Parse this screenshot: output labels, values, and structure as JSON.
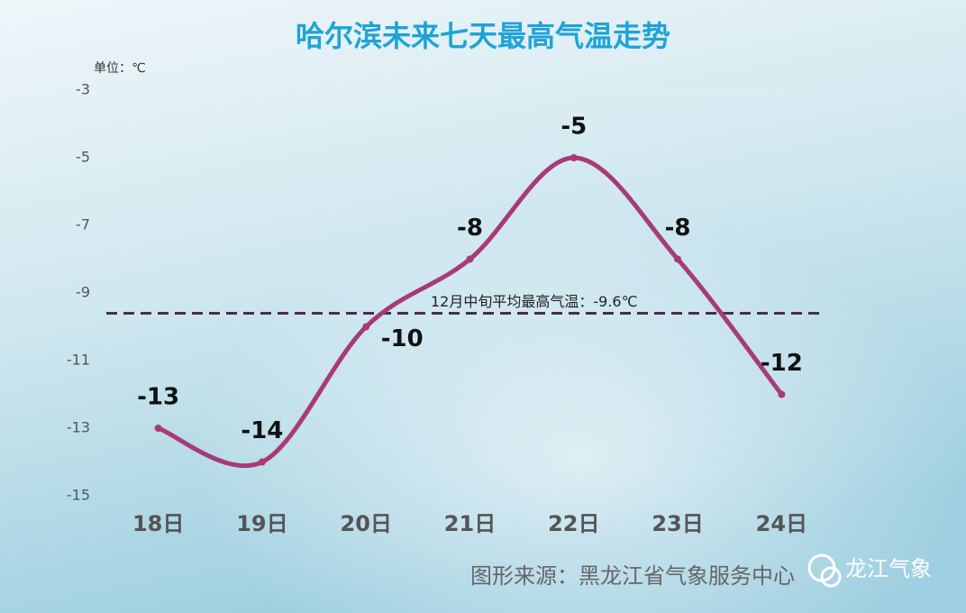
{
  "chart_data": {
    "type": "line",
    "title": "哈尔滨未来七天最高气温走势",
    "y_unit": "单位：℃",
    "categories": [
      "18日",
      "19日",
      "20日",
      "21日",
      "22日",
      "23日",
      "24日"
    ],
    "values": [
      -13,
      -14,
      -10,
      -8,
      -5,
      -8,
      -12
    ],
    "color": "#a83a78",
    "ylim": [
      -15,
      -3
    ],
    "yticks": [
      -3,
      -5,
      -7,
      -9,
      -11,
      -13,
      -15
    ],
    "reference": {
      "value": -9.6,
      "label": "12月中旬平均最高气温：-9.6℃",
      "color": "#4a2e48"
    },
    "source": "图形来源：黑龙江省气象服务中心",
    "watermark": "龙江气象"
  }
}
